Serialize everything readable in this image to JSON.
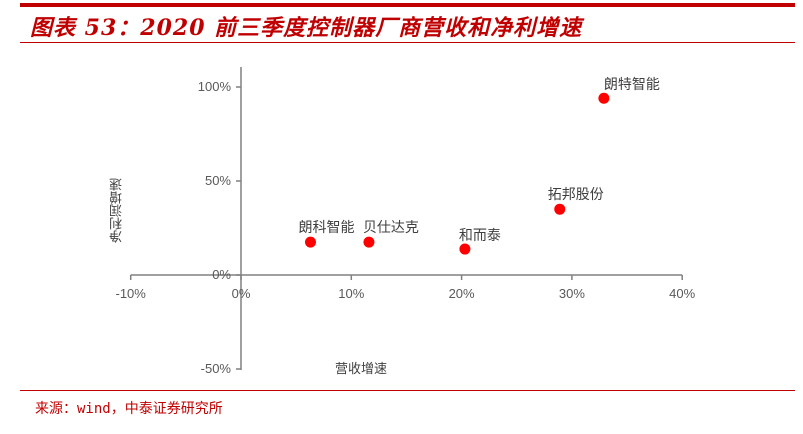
{
  "header": {
    "title": "图表 53：2020 前三季度控制器厂商营收和净利增速"
  },
  "footer": {
    "source": "来源：wind，中泰证券研究所"
  },
  "colors": {
    "accent": "#c00000",
    "point": "#ff0000",
    "axis": "#808080",
    "text": "#595959"
  },
  "chart_data": {
    "type": "scatter",
    "title": "图表 53：2020 前三季度控制器厂商营收和净利增速",
    "xlabel": "营收增速",
    "ylabel": "净利润增速",
    "xlim": [
      -0.1,
      0.4
    ],
    "ylim": [
      -0.5,
      1.1
    ],
    "x_ticks": [
      "-10%",
      "0%",
      "10%",
      "20%",
      "30%",
      "40%"
    ],
    "y_ticks": [
      "100%",
      "50%",
      "0%",
      "-50%"
    ],
    "grid": false,
    "legend": null,
    "points": [
      {
        "name": "朗特智能",
        "x": 0.329,
        "y": 0.94
      },
      {
        "name": "拓邦股份",
        "x": 0.289,
        "y": 0.35
      },
      {
        "name": "和而泰",
        "x": 0.203,
        "y": 0.138
      },
      {
        "name": "贝仕达克",
        "x": 0.116,
        "y": 0.175
      },
      {
        "name": "朗科智能",
        "x": 0.063,
        "y": 0.175
      }
    ]
  }
}
